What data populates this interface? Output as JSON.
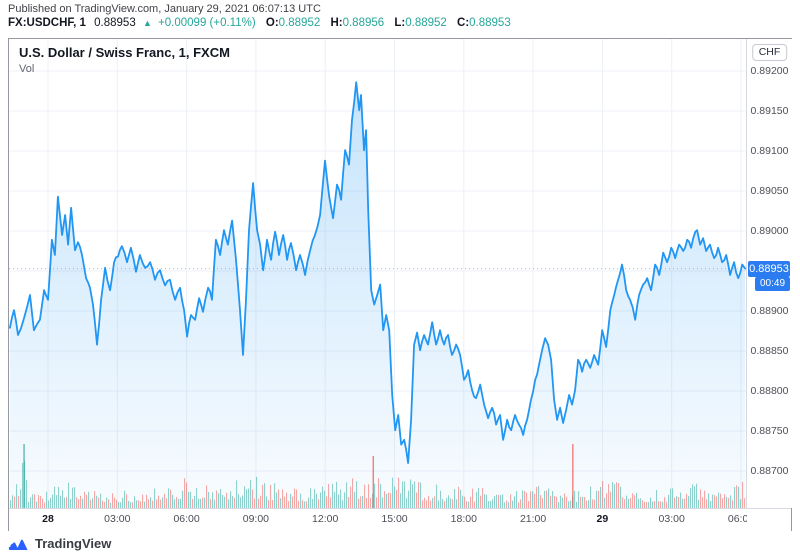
{
  "header": {
    "published_line": "Published on TradingView.com, January 29, 2021 06:07:13 UTC",
    "symbol": "FX:USDCHF, 1",
    "last_price": "0.88953",
    "direction_arrow": "▲",
    "change": "+0.00099 (+0.11%)",
    "ohlc": [
      {
        "label": "O:",
        "value": "0.88952"
      },
      {
        "label": "H:",
        "value": "0.88956"
      },
      {
        "label": "L:",
        "value": "0.88952"
      },
      {
        "label": "C:",
        "value": "0.88953"
      }
    ]
  },
  "chart": {
    "title": "U.S. Dollar / Swiss Franc, 1, FXCM",
    "vol_label": "Vol",
    "currency_button": "CHF",
    "badge_price": "0.88953",
    "countdown": "00:49"
  },
  "footer": {
    "brand": "TradingView"
  },
  "colors": {
    "line": "#2196f3",
    "badge": "#2b7cf0",
    "vol_up": "#26a69a",
    "vol_down": "#ef5350",
    "accent_teal": "#26a69a",
    "grid": "#edf0f7",
    "brand_blue": "#2962ff"
  },
  "chart_data": {
    "type": "area",
    "title": "U.S. Dollar / Swiss Franc, 1, FXCM",
    "symbol": "USDCHF",
    "interval_minutes": 1,
    "exchange": "FXCM",
    "last_price": 0.88953,
    "x_unit": "hours_from_2021-01-28_00:00_UTC",
    "ylim": [
      0.88655,
      0.89215
    ],
    "grid_prices": [
      0.892,
      0.8915,
      0.891,
      0.8905,
      0.89,
      0.8895,
      0.889,
      0.8885,
      0.888,
      0.8875,
      0.887
    ],
    "price_ticks": [
      "0.89200",
      "0.89150",
      "0.89100",
      "0.89050",
      "0.89000",
      "0.88900",
      "0.88850",
      "0.88800",
      "0.88750",
      "0.88700"
    ],
    "time_ticks": [
      {
        "label": "28",
        "hour": 0,
        "bold": true
      },
      {
        "label": "03:00",
        "hour": 3,
        "bold": false
      },
      {
        "label": "06:00",
        "hour": 6,
        "bold": false
      },
      {
        "label": "09:00",
        "hour": 9,
        "bold": false
      },
      {
        "label": "12:00",
        "hour": 12,
        "bold": false
      },
      {
        "label": "15:00",
        "hour": 15,
        "bold": false
      },
      {
        "label": "18:00",
        "hour": 18,
        "bold": false
      },
      {
        "label": "21:00",
        "hour": 21,
        "bold": false
      },
      {
        "label": "29",
        "hour": 24,
        "bold": true
      },
      {
        "label": "03:00",
        "hour": 27,
        "bold": false
      },
      {
        "label": "06:00",
        "hour": 30,
        "bold": false
      }
    ],
    "series": [
      {
        "name": "USD/CHF price",
        "points": [
          [
            -1.65,
            0.88879
          ],
          [
            -1.47,
            0.88901
          ],
          [
            -1.3,
            0.8887
          ],
          [
            -1.04,
            0.88891
          ],
          [
            -0.78,
            0.8892
          ],
          [
            -0.61,
            0.88876
          ],
          [
            -0.35,
            0.88889
          ],
          [
            -0.17,
            0.88926
          ],
          [
            0,
            0.88914
          ],
          [
            0.17,
            0.88989
          ],
          [
            0.3,
            0.8897
          ],
          [
            0.43,
            0.89043
          ],
          [
            0.61,
            0.88995
          ],
          [
            0.74,
            0.8902
          ],
          [
            0.87,
            0.88983
          ],
          [
            1.0,
            0.89029
          ],
          [
            1.17,
            0.88976
          ],
          [
            1.3,
            0.88986
          ],
          [
            1.47,
            0.8897
          ],
          [
            1.65,
            0.88941
          ],
          [
            1.82,
            0.88929
          ],
          [
            1.95,
            0.88908
          ],
          [
            2.12,
            0.88858
          ],
          [
            2.3,
            0.88914
          ],
          [
            2.47,
            0.88954
          ],
          [
            2.69,
            0.88926
          ],
          [
            2.86,
            0.88961
          ],
          [
            3.03,
            0.88968
          ],
          [
            3.2,
            0.88981
          ],
          [
            3.42,
            0.88961
          ],
          [
            3.59,
            0.88979
          ],
          [
            3.81,
            0.88949
          ],
          [
            3.98,
            0.8897
          ],
          [
            4.2,
            0.88954
          ],
          [
            4.42,
            0.88961
          ],
          [
            4.63,
            0.88939
          ],
          [
            4.85,
            0.88951
          ],
          [
            5.07,
            0.88932
          ],
          [
            5.28,
            0.88939
          ],
          [
            5.5,
            0.88914
          ],
          [
            5.72,
            0.88929
          ],
          [
            5.89,
            0.88901
          ],
          [
            6.02,
            0.88868
          ],
          [
            6.19,
            0.88895
          ],
          [
            6.37,
            0.88889
          ],
          [
            6.54,
            0.88916
          ],
          [
            6.71,
            0.88899
          ],
          [
            6.93,
            0.88929
          ],
          [
            7.1,
            0.88914
          ],
          [
            7.27,
            0.88989
          ],
          [
            7.45,
            0.8897
          ],
          [
            7.62,
            0.89001
          ],
          [
            7.79,
            0.88983
          ],
          [
            7.97,
            0.89013
          ],
          [
            8.14,
            0.88964
          ],
          [
            8.31,
            0.88901
          ],
          [
            8.44,
            0.88845
          ],
          [
            8.57,
            0.88914
          ],
          [
            8.7,
            0.89001
          ],
          [
            8.88,
            0.8906
          ],
          [
            9.05,
            0.89001
          ],
          [
            9.18,
            0.88983
          ],
          [
            9.31,
            0.88951
          ],
          [
            9.48,
            0.88989
          ],
          [
            9.66,
            0.88964
          ],
          [
            9.83,
            0.88999
          ],
          [
            10.0,
            0.8897
          ],
          [
            10.18,
            0.88995
          ],
          [
            10.35,
            0.88964
          ],
          [
            10.52,
            0.88985
          ],
          [
            10.74,
            0.88951
          ],
          [
            10.91,
            0.8897
          ],
          [
            11.13,
            0.88945
          ],
          [
            11.35,
            0.88976
          ],
          [
            11.56,
            0.88995
          ],
          [
            11.78,
            0.8902
          ],
          [
            11.99,
            0.89088
          ],
          [
            12.17,
            0.89044
          ],
          [
            12.34,
            0.89016
          ],
          [
            12.51,
            0.89058
          ],
          [
            12.69,
            0.89039
          ],
          [
            12.86,
            0.89101
          ],
          [
            13.03,
            0.89083
          ],
          [
            13.16,
            0.89139
          ],
          [
            13.34,
            0.89186
          ],
          [
            13.47,
            0.89151
          ],
          [
            13.55,
            0.8917
          ],
          [
            13.68,
            0.89101
          ],
          [
            13.77,
            0.89126
          ],
          [
            13.86,
            0.89026
          ],
          [
            13.99,
            0.88926
          ],
          [
            14.12,
            0.88908
          ],
          [
            14.25,
            0.8892
          ],
          [
            14.38,
            0.88933
          ],
          [
            14.51,
            0.88876
          ],
          [
            14.64,
            0.88895
          ],
          [
            14.77,
            0.88876
          ],
          [
            14.9,
            0.88795
          ],
          [
            15.03,
            0.88751
          ],
          [
            15.16,
            0.8877
          ],
          [
            15.29,
            0.88733
          ],
          [
            15.42,
            0.88739
          ],
          [
            15.59,
            0.8871
          ],
          [
            15.72,
            0.88764
          ],
          [
            15.85,
            0.88858
          ],
          [
            15.98,
            0.88873
          ],
          [
            16.11,
            0.88851
          ],
          [
            16.28,
            0.8887
          ],
          [
            16.45,
            0.88858
          ],
          [
            16.63,
            0.88886
          ],
          [
            16.8,
            0.88858
          ],
          [
            16.97,
            0.88876
          ],
          [
            17.15,
            0.88858
          ],
          [
            17.32,
            0.8887
          ],
          [
            17.49,
            0.88845
          ],
          [
            17.67,
            0.88858
          ],
          [
            17.84,
            0.88845
          ],
          [
            18.01,
            0.88814
          ],
          [
            18.19,
            0.88826
          ],
          [
            18.36,
            0.88801
          ],
          [
            18.53,
            0.88791
          ],
          [
            18.71,
            0.88808
          ],
          [
            18.88,
            0.88783
          ],
          [
            19.05,
            0.88766
          ],
          [
            19.23,
            0.88779
          ],
          [
            19.4,
            0.88758
          ],
          [
            19.57,
            0.8877
          ],
          [
            19.7,
            0.88739
          ],
          [
            19.88,
            0.88764
          ],
          [
            20.05,
            0.88751
          ],
          [
            20.22,
            0.8877
          ],
          [
            20.39,
            0.88758
          ],
          [
            20.57,
            0.88745
          ],
          [
            20.74,
            0.88764
          ],
          [
            20.91,
            0.88789
          ],
          [
            21.09,
            0.88814
          ],
          [
            21.26,
            0.88833
          ],
          [
            21.39,
            0.88851
          ],
          [
            21.52,
            0.88866
          ],
          [
            21.65,
            0.88858
          ],
          [
            21.78,
            0.88839
          ],
          [
            21.91,
            0.88789
          ],
          [
            22.04,
            0.88764
          ],
          [
            22.17,
            0.88779
          ],
          [
            22.3,
            0.8876
          ],
          [
            22.43,
            0.88776
          ],
          [
            22.56,
            0.88795
          ],
          [
            22.69,
            0.88783
          ],
          [
            22.82,
            0.88801
          ],
          [
            22.95,
            0.88839
          ],
          [
            23.12,
            0.88824
          ],
          [
            23.3,
            0.88839
          ],
          [
            23.47,
            0.88829
          ],
          [
            23.64,
            0.88845
          ],
          [
            23.82,
            0.88833
          ],
          [
            23.99,
            0.88876
          ],
          [
            24.16,
            0.88855
          ],
          [
            24.34,
            0.88901
          ],
          [
            24.51,
            0.8892
          ],
          [
            24.68,
            0.88939
          ],
          [
            24.85,
            0.88958
          ],
          [
            25.03,
            0.88926
          ],
          [
            25.2,
            0.88914
          ],
          [
            25.42,
            0.88889
          ],
          [
            25.59,
            0.8892
          ],
          [
            25.76,
            0.88933
          ],
          [
            25.94,
            0.88941
          ],
          [
            26.11,
            0.88926
          ],
          [
            26.28,
            0.88958
          ],
          [
            26.46,
            0.88945
          ],
          [
            26.63,
            0.88973
          ],
          [
            26.8,
            0.88961
          ],
          [
            26.98,
            0.88979
          ],
          [
            27.15,
            0.88966
          ],
          [
            27.32,
            0.88983
          ],
          [
            27.5,
            0.88975
          ],
          [
            27.67,
            0.88989
          ],
          [
            27.84,
            0.88979
          ],
          [
            28.02,
            0.88999
          ],
          [
            28.1,
            0.89001
          ],
          [
            28.23,
            0.88983
          ],
          [
            28.36,
            0.88991
          ],
          [
            28.49,
            0.88975
          ],
          [
            28.66,
            0.88983
          ],
          [
            28.84,
            0.88966
          ],
          [
            29.01,
            0.88979
          ],
          [
            29.18,
            0.88961
          ],
          [
            29.36,
            0.8897
          ],
          [
            29.53,
            0.88945
          ],
          [
            29.7,
            0.88961
          ],
          [
            29.88,
            0.88941
          ],
          [
            30.05,
            0.88958
          ],
          [
            30.18,
            0.88953
          ]
        ]
      }
    ],
    "volume": {
      "note": "relative bar-height envelope in px, mixed up/down 1-min bars",
      "envelope": [
        [
          -1.69,
          12
        ],
        [
          -1.04,
          62
        ],
        [
          -0.9,
          14
        ],
        [
          0.0,
          16
        ],
        [
          0.7,
          26
        ],
        [
          1.4,
          20
        ],
        [
          2.3,
          14
        ],
        [
          3.5,
          16
        ],
        [
          4.8,
          22
        ],
        [
          5.9,
          34
        ],
        [
          6.5,
          20
        ],
        [
          7.8,
          26
        ],
        [
          8.9,
          32
        ],
        [
          9.8,
          24
        ],
        [
          10.9,
          20
        ],
        [
          11.9,
          24
        ],
        [
          13.0,
          26
        ],
        [
          13.8,
          34
        ],
        [
          14.9,
          32
        ],
        [
          15.6,
          28
        ],
        [
          16.5,
          24
        ],
        [
          17.8,
          20
        ],
        [
          19.1,
          18
        ],
        [
          20.4,
          16
        ],
        [
          21.5,
          24
        ],
        [
          22.1,
          18
        ],
        [
          23.2,
          18
        ],
        [
          24.3,
          28
        ],
        [
          25.0,
          20
        ],
        [
          26.1,
          16
        ],
        [
          27.1,
          20
        ],
        [
          28.1,
          24
        ],
        [
          29.0,
          20
        ],
        [
          30.2,
          26
        ]
      ],
      "spikes": [
        [
          -1.04,
          64,
          "up"
        ],
        [
          14.08,
          52,
          "down"
        ],
        [
          22.72,
          64,
          "down"
        ]
      ]
    }
  }
}
